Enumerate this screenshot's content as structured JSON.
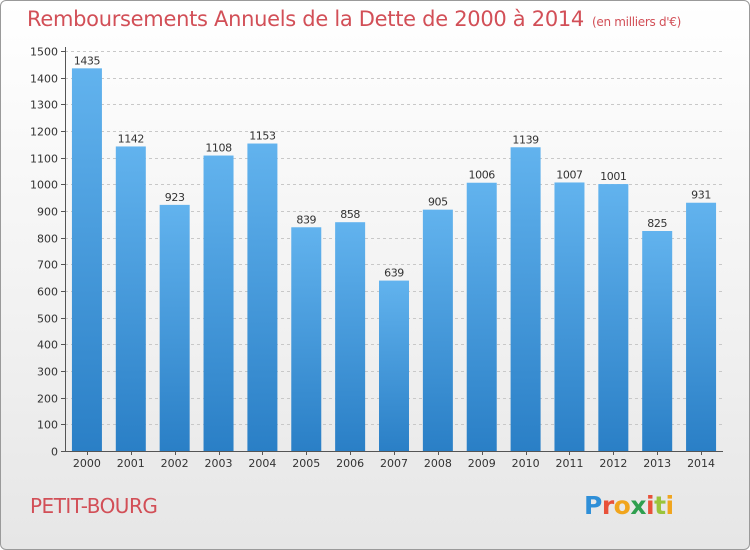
{
  "header": {
    "title": "Remboursements Annuels de la Dette de 2000 à 2014",
    "subtitle": "(en milliers d'€)"
  },
  "footer": {
    "location": "PETIT-BOURG",
    "logo_letters": [
      "P",
      "r",
      "o",
      "x",
      "i",
      "t",
      "i"
    ]
  },
  "colors": {
    "title": "#d24f57",
    "bar_top": "#62b3ee",
    "bar_bottom": "#2a7fc6"
  },
  "chart_data": {
    "type": "bar",
    "title": "Remboursements Annuels de la Dette de 2000 à 2014",
    "subtitle": "(en milliers d'€)",
    "xlabel": "",
    "ylabel": "",
    "categories": [
      "2000",
      "2001",
      "2002",
      "2003",
      "2004",
      "2005",
      "2006",
      "2007",
      "2008",
      "2009",
      "2010",
      "2011",
      "2012",
      "2013",
      "2014"
    ],
    "values": [
      1435,
      1142,
      923,
      1108,
      1153,
      839,
      858,
      639,
      905,
      1006,
      1139,
      1007,
      1001,
      825,
      931
    ],
    "data_labels": [
      "1435",
      "1142",
      "923",
      "1108",
      "1153",
      "839",
      "858",
      "639",
      "905",
      "1006",
      "1139",
      "1007",
      "1001",
      "825",
      "931"
    ],
    "ylim": [
      0,
      1500
    ],
    "yticks": [
      0,
      100,
      200,
      300,
      400,
      500,
      600,
      700,
      800,
      900,
      1000,
      1100,
      1200,
      1300,
      1400,
      1500
    ],
    "grid": true,
    "legend": "none"
  }
}
